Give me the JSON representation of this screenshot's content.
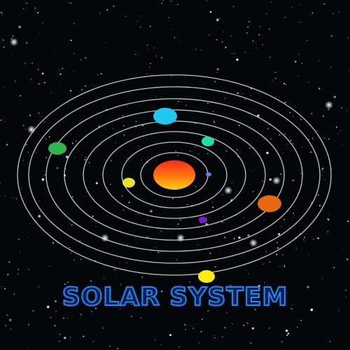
{
  "title": "SOLAR SYSTEM",
  "colors": {
    "background": "#04060a",
    "orbit": "#e6e6e6",
    "title_fill": "#0e1f5a",
    "title_stroke": "#2f86e8"
  },
  "bodies": [
    {
      "name": "sun",
      "color": "#ff3a1a"
    },
    {
      "name": "planet-1",
      "color": "#5a7cf0"
    },
    {
      "name": "planet-2",
      "color": "#e8e22a"
    },
    {
      "name": "planet-3",
      "color": "#7a1ad8"
    },
    {
      "name": "planet-4",
      "color": "#20e0a8"
    },
    {
      "name": "planet-5",
      "color": "#e86a10"
    },
    {
      "name": "planet-6",
      "color": "#20c8f0"
    },
    {
      "name": "planet-7",
      "color": "#2cb84a"
    },
    {
      "name": "planet-8",
      "color": "#f8ec10"
    }
  ]
}
